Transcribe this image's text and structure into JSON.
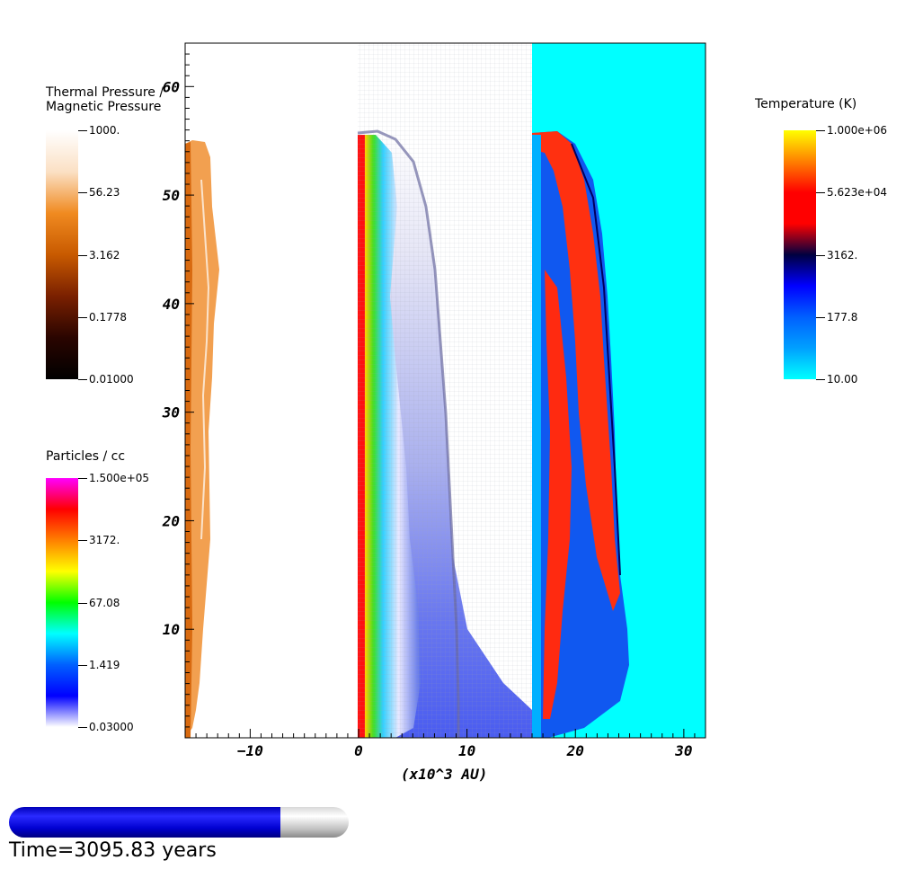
{
  "chart_data": {
    "type": "heatmap",
    "xlabel": "(x10^3 AU)",
    "ylabel": "",
    "xlim": [
      -16,
      32
    ],
    "ylim": [
      0,
      64
    ],
    "x_ticks": [
      -10,
      0,
      10,
      20,
      30
    ],
    "y_ticks": [
      10,
      20,
      30,
      40,
      50,
      60
    ],
    "panels": [
      {
        "field": "Thermal Pressure / Magnetic Pressure",
        "x_range": [
          -16,
          0
        ]
      },
      {
        "field": "Particles / cc",
        "x_range": [
          0,
          16
        ]
      },
      {
        "field": "Temperature (K)",
        "x_range": [
          16,
          32
        ]
      }
    ],
    "colorbars": [
      {
        "title": "Thermal Pressure /\nMagnetic Pressure",
        "labels": [
          "1000.",
          "56.23",
          "3.162",
          "0.1778",
          "0.01000"
        ],
        "colors": [
          "#ffffff",
          "#fbe0c4",
          "#f08a20",
          "#c85a00",
          "#7a2000",
          "#2a0500",
          "#000000"
        ]
      },
      {
        "title": "Particles / cc",
        "labels": [
          "1.500e+05",
          "3172.",
          "67.08",
          "1.419",
          "0.03000"
        ],
        "colors": [
          "#ff00ff",
          "#ff0000",
          "#ff8000",
          "#ffff00",
          "#00ff00",
          "#00ffff",
          "#0060ff",
          "#0000ff",
          "#ffffff"
        ]
      },
      {
        "title": "Temperature (K)",
        "labels": [
          "1.000e+06",
          "5.623e+04",
          "3162.",
          "177.8",
          "10.00"
        ],
        "colors": [
          "#ffff00",
          "#ff8000",
          "#ff0000",
          "#ff0000",
          "#000040",
          "#0000ff",
          "#0060ff",
          "#00a0ff",
          "#00ffff"
        ]
      }
    ]
  },
  "progress": {
    "fraction": 0.8,
    "label": "Time=3095.83 years"
  },
  "colors": {
    "bg_temperature": "#00ffff",
    "pressure_orange": "#f08a20"
  }
}
